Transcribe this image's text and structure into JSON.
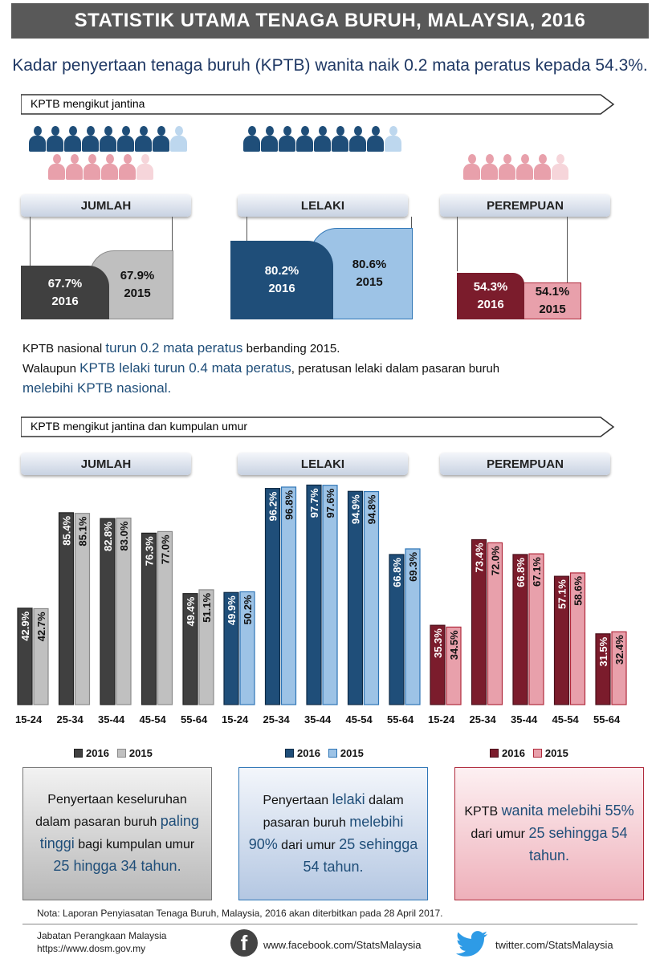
{
  "banner": "STATISTIK UTAMA TENAGA BURUH,  MALAYSIA, 2016",
  "subtitle": "Kadar penyertaan tenaga buruh (KPTB) wanita naik 0.2 mata peratus kepada 54.3%.",
  "section1": {
    "title": "KPTB mengikut jantina"
  },
  "section2": {
    "title": "KPTB mengikut jantina dan kumpulan umur"
  },
  "headers": {
    "total": "JUMLAH",
    "male": "LELAKI",
    "female": "PEREMPUAN"
  },
  "gender_rates": {
    "total": {
      "v2016": "67.7%",
      "y2016": "2016",
      "v2015": "67.9%",
      "y2015": "2015"
    },
    "male": {
      "v2016": "80.2%",
      "y2016": "2016",
      "v2015": "80.6%",
      "y2015": "2015"
    },
    "female": {
      "v2016": "54.3%",
      "y2016": "2016",
      "v2015": "54.1%",
      "y2015": "2015"
    }
  },
  "body": {
    "line1_a": "KPTB nasional ",
    "line1_b": "turun 0.2 mata peratus",
    "line1_c": " berbanding 2015.",
    "line2_a": "Walaupun ",
    "line2_b": "KPTB lelaki turun 0.4 mata peratus",
    "line2_c": ", peratusan lelaki dalam pasaran buruh",
    "line3": "melebihi KPTB nasional."
  },
  "chart_data": [
    {
      "type": "bar",
      "title": "JUMLAH",
      "categories": [
        "15-24",
        "25-34",
        "35-44",
        "45-54",
        "55-64"
      ],
      "series": [
        {
          "name": "2016",
          "values": [
            42.9,
            85.4,
            82.8,
            76.3,
            49.4
          ]
        },
        {
          "name": "2015",
          "values": [
            42.7,
            85.1,
            83.0,
            77.0,
            51.1
          ]
        }
      ],
      "colors": [
        "#404040",
        "#c0c0c0"
      ],
      "stroke": [
        "#222222",
        "#8a8a8a"
      ]
    },
    {
      "type": "bar",
      "title": "LELAKI",
      "categories": [
        "15-24",
        "25-34",
        "35-44",
        "45-54",
        "55-64"
      ],
      "series": [
        {
          "name": "2016",
          "values": [
            49.9,
            96.2,
            97.7,
            94.9,
            66.8
          ]
        },
        {
          "name": "2015",
          "values": [
            50.2,
            96.8,
            97.6,
            94.8,
            69.3
          ]
        }
      ],
      "colors": [
        "#1f4e79",
        "#9dc3e6"
      ],
      "stroke": [
        "#0d2a45",
        "#2e75b6"
      ]
    },
    {
      "type": "bar",
      "title": "PEREMPUAN",
      "categories": [
        "15-24",
        "25-34",
        "35-44",
        "45-54",
        "55-64"
      ],
      "series": [
        {
          "name": "2016",
          "values": [
            35.3,
            73.4,
            66.8,
            57.1,
            31.5
          ]
        },
        {
          "name": "2015",
          "values": [
            34.5,
            72.0,
            67.1,
            58.6,
            32.4
          ]
        }
      ],
      "colors": [
        "#7b1c2c",
        "#e8a0ab"
      ],
      "stroke": [
        "#4a0f1a",
        "#b02a3c"
      ]
    }
  ],
  "legend": {
    "y2016": "2016",
    "y2015": "2015"
  },
  "notes": {
    "total": {
      "a": "Penyertaan keseluruhan dalam pasaran buruh ",
      "b": "paling tinggi",
      "c": " bagi kumpulan umur ",
      "d": "25 hingga 34 tahun."
    },
    "male": {
      "a": "Penyertaan ",
      "b": "lelaki",
      "c": " dalam pasaran buruh ",
      "d": "melebihi 90%",
      "e": " dari umur ",
      "f": "25 sehingga 54 tahun."
    },
    "female": {
      "a": "KPTB ",
      "b": "wanita melebihi 55%",
      "c": " dari umur ",
      "d": "25 sehingga 54 tahun."
    }
  },
  "footnote": "Nota: Laporan Penyiasatan Tenaga Buruh, Malaysia, 2016 akan diterbitkan pada 28 April 2017.",
  "footer": {
    "org": "Jabatan Perangkaan Malaysia",
    "url": "https://www.dosm.gov.my",
    "facebook": "www.facebook.com/StatsMalaysia",
    "twitter": "twitter.com/StatsMalaysia"
  }
}
